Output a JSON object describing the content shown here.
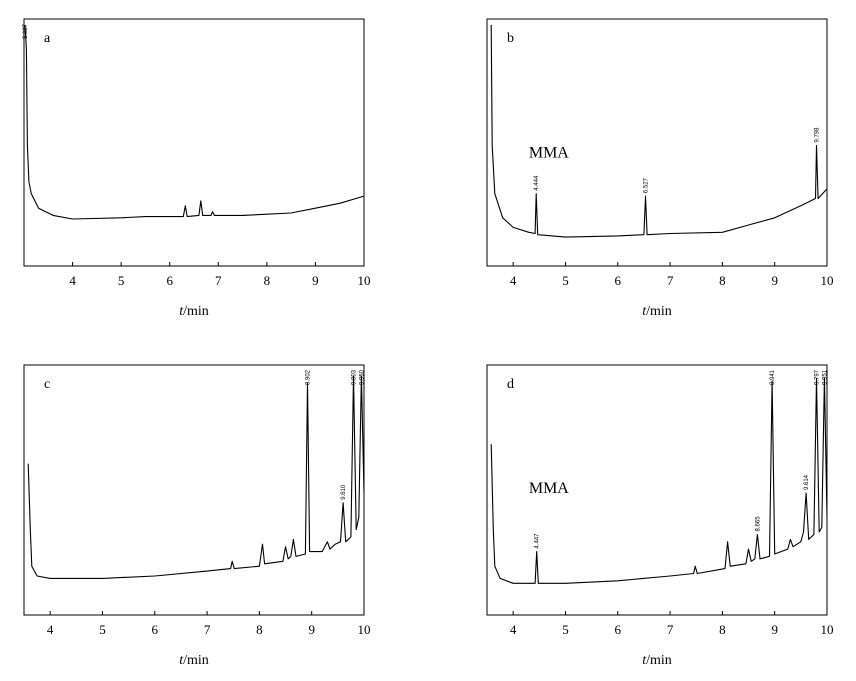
{
  "chart_data": [
    {
      "panel": "a",
      "type": "line",
      "xlabel_italic": "t",
      "xlabel_rest": "/min",
      "xlim": [
        3,
        10
      ],
      "x_ticks": [
        "4",
        "5",
        "6",
        "7",
        "8",
        "9",
        "10"
      ],
      "ylim": [
        0,
        1
      ],
      "grid": false,
      "points": [
        [
          3.02,
          1.0
        ],
        [
          3.05,
          0.9
        ],
        [
          3.07,
          0.5
        ],
        [
          3.1,
          0.35
        ],
        [
          3.15,
          0.3
        ],
        [
          3.3,
          0.24
        ],
        [
          3.6,
          0.21
        ],
        [
          4.0,
          0.195
        ],
        [
          5.0,
          0.2
        ],
        [
          5.5,
          0.205
        ],
        [
          6.0,
          0.205
        ],
        [
          6.28,
          0.205
        ],
        [
          6.32,
          0.25
        ],
        [
          6.36,
          0.205
        ],
        [
          6.6,
          0.21
        ],
        [
          6.64,
          0.27
        ],
        [
          6.68,
          0.21
        ],
        [
          6.85,
          0.21
        ],
        [
          6.88,
          0.225
        ],
        [
          6.92,
          0.21
        ],
        [
          7.5,
          0.21
        ],
        [
          8.0,
          0.215
        ],
        [
          8.5,
          0.22
        ],
        [
          9.0,
          0.24
        ],
        [
          9.5,
          0.26
        ],
        [
          10.0,
          0.29
        ]
      ],
      "peak_labels": [
        {
          "x": 3.02,
          "text": "3.027"
        }
      ]
    },
    {
      "panel": "b",
      "type": "line",
      "xlabel_italic": "t",
      "xlabel_rest": "/min",
      "xlim": [
        3.5,
        10
      ],
      "x_ticks": [
        "4",
        "5",
        "6",
        "7",
        "8",
        "9",
        "10"
      ],
      "ylim": [
        0,
        1
      ],
      "grid": false,
      "annotations": [
        {
          "text": "MMA",
          "x": 4.3,
          "y": 0.45
        }
      ],
      "points": [
        [
          3.58,
          1.0
        ],
        [
          3.6,
          0.5
        ],
        [
          3.65,
          0.3
        ],
        [
          3.8,
          0.2
        ],
        [
          4.0,
          0.16
        ],
        [
          4.3,
          0.14
        ],
        [
          4.42,
          0.135
        ],
        [
          4.44,
          0.3
        ],
        [
          4.47,
          0.13
        ],
        [
          5.0,
          0.12
        ],
        [
          6.0,
          0.125
        ],
        [
          6.5,
          0.13
        ],
        [
          6.53,
          0.29
        ],
        [
          6.56,
          0.13
        ],
        [
          7.0,
          0.135
        ],
        [
          8.0,
          0.14
        ],
        [
          8.5,
          0.17
        ],
        [
          9.0,
          0.2
        ],
        [
          9.5,
          0.25
        ],
        [
          9.78,
          0.28
        ],
        [
          9.8,
          0.5
        ],
        [
          9.83,
          0.28
        ],
        [
          10.0,
          0.32
        ]
      ],
      "peak_labels": [
        {
          "x": 4.44,
          "text": "4.444"
        },
        {
          "x": 6.53,
          "text": "6.527"
        },
        {
          "x": 9.8,
          "text": "9.798"
        }
      ]
    },
    {
      "panel": "c",
      "type": "line",
      "xlabel_italic": "t",
      "xlabel_rest": "/min",
      "xlim": [
        3.5,
        10
      ],
      "x_ticks": [
        "4",
        "5",
        "6",
        "7",
        "8",
        "9",
        "10"
      ],
      "ylim": [
        0,
        1
      ],
      "grid": false,
      "points": [
        [
          3.58,
          0.62
        ],
        [
          3.62,
          0.35
        ],
        [
          3.65,
          0.2
        ],
        [
          3.75,
          0.16
        ],
        [
          4.0,
          0.15
        ],
        [
          5.0,
          0.15
        ],
        [
          6.0,
          0.16
        ],
        [
          7.0,
          0.18
        ],
        [
          7.45,
          0.19
        ],
        [
          7.48,
          0.22
        ],
        [
          7.52,
          0.19
        ],
        [
          8.0,
          0.2
        ],
        [
          8.06,
          0.29
        ],
        [
          8.1,
          0.21
        ],
        [
          8.45,
          0.22
        ],
        [
          8.5,
          0.28
        ],
        [
          8.55,
          0.23
        ],
        [
          8.6,
          0.24
        ],
        [
          8.65,
          0.31
        ],
        [
          8.7,
          0.24
        ],
        [
          8.88,
          0.25
        ],
        [
          8.92,
          0.95
        ],
        [
          8.96,
          0.26
        ],
        [
          9.2,
          0.26
        ],
        [
          9.3,
          0.3
        ],
        [
          9.35,
          0.27
        ],
        [
          9.45,
          0.29
        ],
        [
          9.55,
          0.3
        ],
        [
          9.6,
          0.46
        ],
        [
          9.65,
          0.3
        ],
        [
          9.75,
          0.32
        ],
        [
          9.8,
          0.98
        ],
        [
          9.85,
          0.35
        ],
        [
          9.9,
          0.4
        ],
        [
          9.95,
          0.98
        ],
        [
          10.0,
          0.5
        ]
      ],
      "peak_labels": [
        {
          "x": 8.92,
          "text": "8.902"
        },
        {
          "x": 9.6,
          "text": "9.610"
        },
        {
          "x": 9.8,
          "text": "9.803"
        },
        {
          "x": 9.95,
          "text": "9.950"
        }
      ]
    },
    {
      "panel": "d",
      "type": "line",
      "xlabel_italic": "t",
      "xlabel_rest": "/min",
      "xlim": [
        3.5,
        10
      ],
      "x_ticks": [
        "4",
        "5",
        "6",
        "7",
        "8",
        "9",
        "10"
      ],
      "ylim": [
        0,
        1
      ],
      "grid": false,
      "annotations": [
        {
          "text": "MMA",
          "x": 4.3,
          "y": 0.5
        }
      ],
      "points": [
        [
          3.58,
          0.7
        ],
        [
          3.62,
          0.35
        ],
        [
          3.65,
          0.2
        ],
        [
          3.75,
          0.15
        ],
        [
          4.0,
          0.13
        ],
        [
          4.42,
          0.13
        ],
        [
          4.45,
          0.26
        ],
        [
          4.48,
          0.13
        ],
        [
          5.0,
          0.13
        ],
        [
          6.0,
          0.14
        ],
        [
          7.0,
          0.16
        ],
        [
          7.45,
          0.17
        ],
        [
          7.48,
          0.2
        ],
        [
          7.52,
          0.17
        ],
        [
          8.05,
          0.19
        ],
        [
          8.1,
          0.3
        ],
        [
          8.15,
          0.2
        ],
        [
          8.45,
          0.21
        ],
        [
          8.5,
          0.27
        ],
        [
          8.55,
          0.22
        ],
        [
          8.62,
          0.23
        ],
        [
          8.67,
          0.33
        ],
        [
          8.72,
          0.23
        ],
        [
          8.9,
          0.24
        ],
        [
          8.95,
          0.96
        ],
        [
          9.0,
          0.25
        ],
        [
          9.25,
          0.27
        ],
        [
          9.3,
          0.31
        ],
        [
          9.35,
          0.28
        ],
        [
          9.5,
          0.3
        ],
        [
          9.55,
          0.34
        ],
        [
          9.6,
          0.5
        ],
        [
          9.65,
          0.31
        ],
        [
          9.75,
          0.33
        ],
        [
          9.8,
          0.97
        ],
        [
          9.85,
          0.34
        ],
        [
          9.9,
          0.36
        ],
        [
          9.95,
          0.97
        ],
        [
          10.0,
          0.4
        ]
      ],
      "peak_labels": [
        {
          "x": 4.45,
          "text": "4.447"
        },
        {
          "x": 8.67,
          "text": "8.665"
        },
        {
          "x": 8.95,
          "text": "8.941"
        },
        {
          "x": 9.6,
          "text": "9.614"
        },
        {
          "x": 9.8,
          "text": "9.797"
        },
        {
          "x": 9.95,
          "text": "9.951"
        }
      ]
    }
  ]
}
